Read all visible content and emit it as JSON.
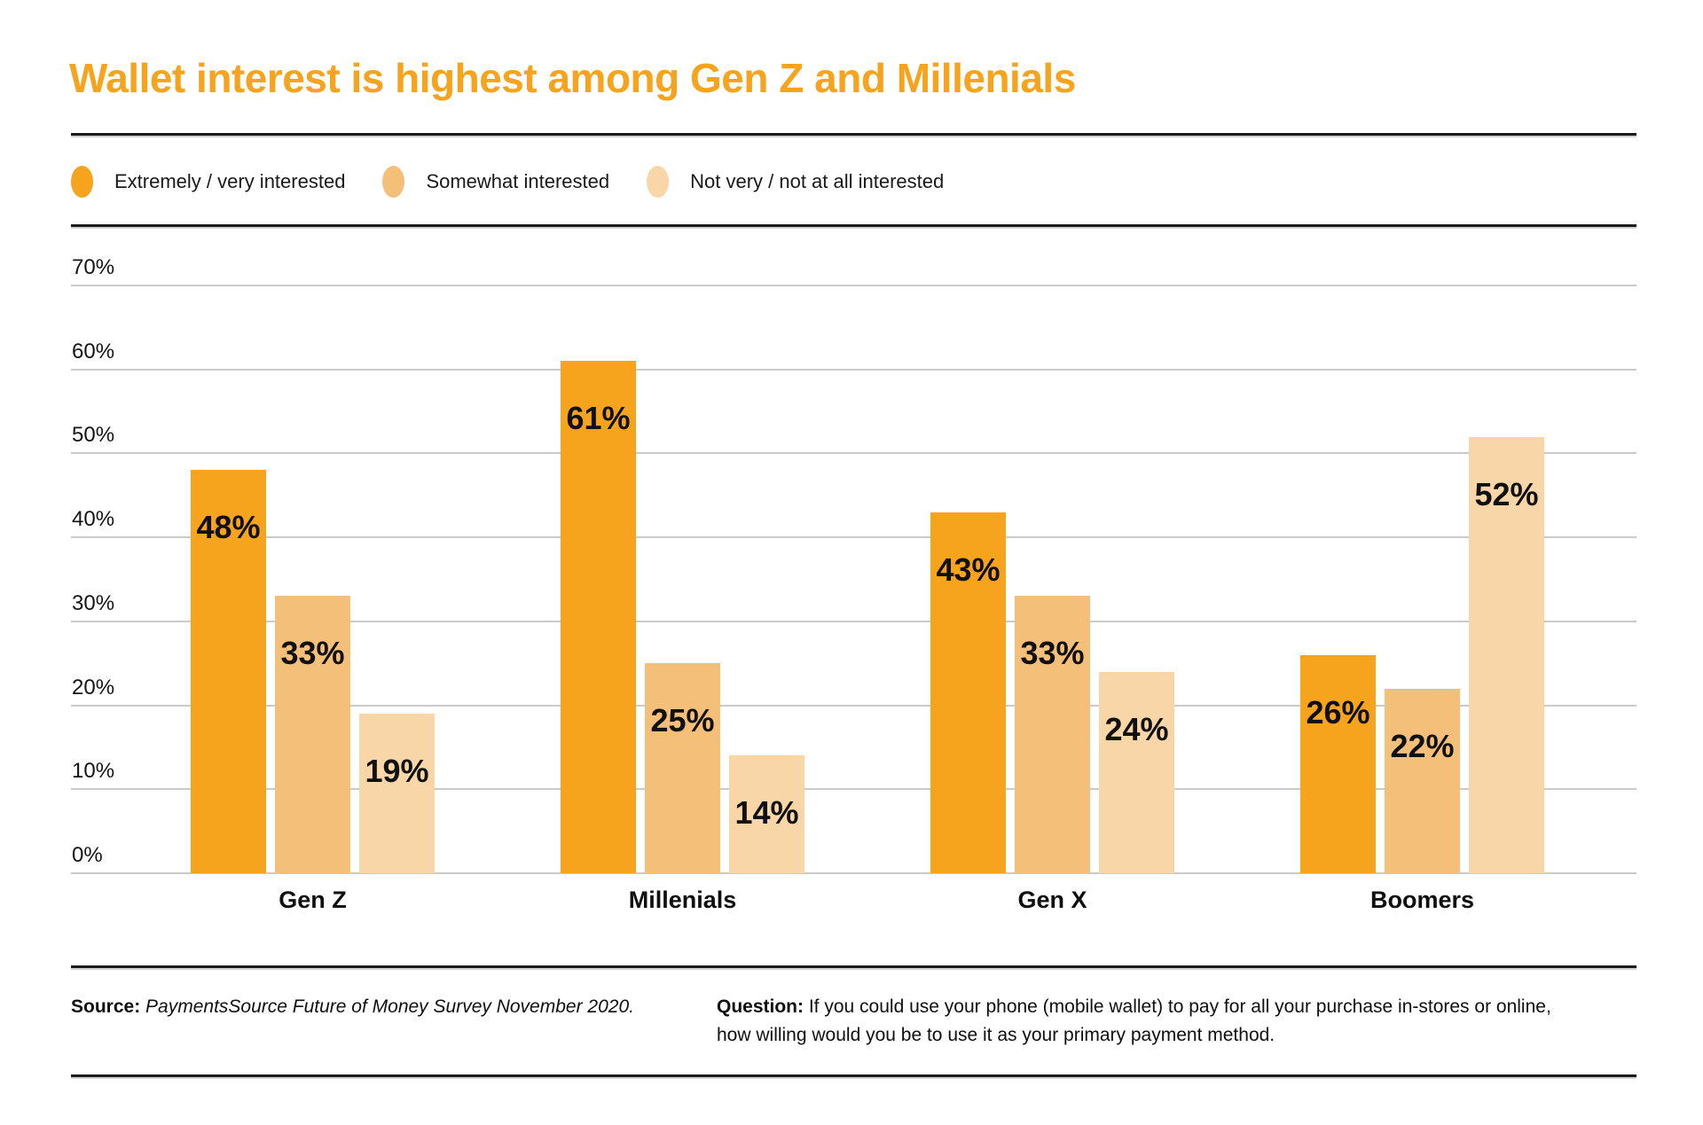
{
  "title": "Wallet interest is highest among Gen Z and Millenials",
  "colors": {
    "accent": "#F6A31D",
    "series1": "#F6A31D",
    "series2": "#F4BF78",
    "series3": "#F8D6A8",
    "gridline": "#CACACA",
    "rule": "#1B1B1B"
  },
  "chart_data": {
    "type": "bar",
    "title": "Wallet interest is highest among Gen Z and Millenials",
    "categories": [
      "Gen Z",
      "Millenials",
      "Gen X",
      "Boomers"
    ],
    "series": [
      {
        "name": "Extremely / very interested",
        "color": "#F6A31D",
        "values": [
          48,
          61,
          43,
          26
        ]
      },
      {
        "name": "Somewhat interested",
        "color": "#F4BF78",
        "values": [
          33,
          25,
          33,
          22
        ]
      },
      {
        "name": "Not very / not at all interested",
        "color": "#F8D6A8",
        "values": [
          19,
          14,
          24,
          52
        ]
      }
    ],
    "value_label_suffix": "%",
    "yticks": [
      "70%",
      "60%",
      "50%",
      "40%",
      "30%",
      "20%",
      "10%",
      "0%"
    ],
    "ylim": [
      0,
      70
    ],
    "grid": true,
    "legend_position": "top",
    "xlabel": "",
    "ylabel": ""
  },
  "footer": {
    "source_label": "Source:",
    "source_text": "PaymentsSource Future of Money Survey November 2020.",
    "question_label": "Question:",
    "question_line1": "If you could use your phone (mobile wallet) to pay for all your purchase in-stores or online,",
    "question_line2": "how willing would you be to use it as your primary payment method."
  }
}
